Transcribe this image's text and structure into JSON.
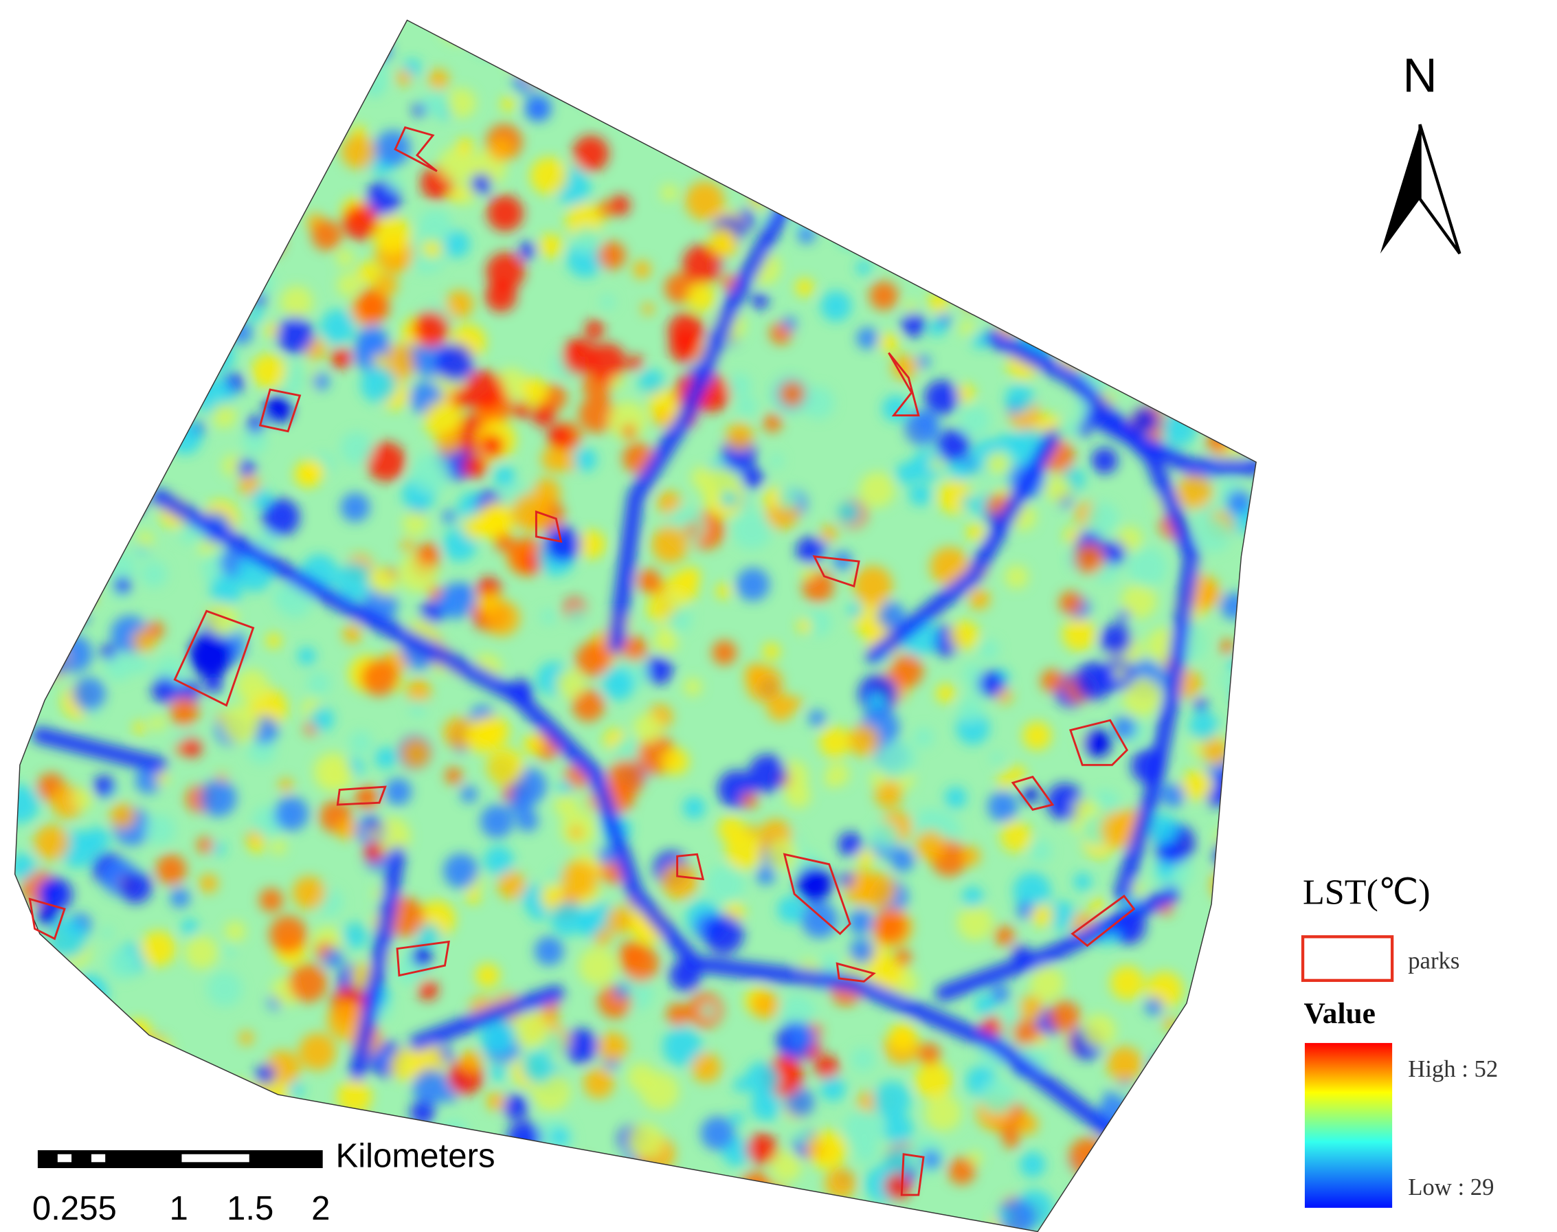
{
  "map": {
    "north": "N",
    "legend": {
      "title": "LST(℃)",
      "parks": "parks",
      "value": "Value",
      "high": "High : 52",
      "low": "Low : 29"
    },
    "scale_bar": {
      "unit": "Kilometers",
      "labels": [
        "0.255",
        "1",
        "1.5",
        "2"
      ]
    }
  }
}
